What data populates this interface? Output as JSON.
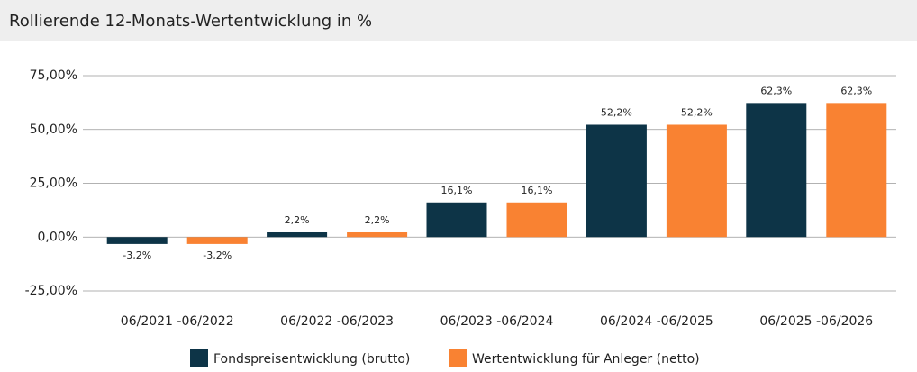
{
  "chart_data": {
    "type": "bar",
    "title": "Rollierende 12-Monats-Wertentwicklung in %",
    "categories": [
      "06/2021 -06/2022",
      "06/2022 -06/2023",
      "06/2023 -06/2024",
      "06/2024 -06/2025",
      "06/2025 -06/2026"
    ],
    "series": [
      {
        "name": "Fondspreisentwicklung (brutto)",
        "color": "#0d3447",
        "values": [
          -3.2,
          2.2,
          16.1,
          52.2,
          62.3
        ],
        "value_labels": [
          "-3,2%",
          "2,2%",
          "16,1%",
          "52,2%",
          "62,3%"
        ]
      },
      {
        "name": "Wertentwicklung für Anleger (netto)",
        "color": "#f98232",
        "values": [
          -3.2,
          2.2,
          16.1,
          52.2,
          62.3
        ],
        "value_labels": [
          "-3,2%",
          "2,2%",
          "16,1%",
          "52,2%",
          "62,3%"
        ]
      }
    ],
    "ylim": [
      -25,
      75
    ],
    "yticks": [
      {
        "value": -25,
        "label": "-25,00%"
      },
      {
        "value": 0,
        "label": "0,00%"
      },
      {
        "value": 25,
        "label": "25,00%"
      },
      {
        "value": 50,
        "label": "50,00%"
      },
      {
        "value": 75,
        "label": "75,00%"
      }
    ],
    "grid": true
  }
}
